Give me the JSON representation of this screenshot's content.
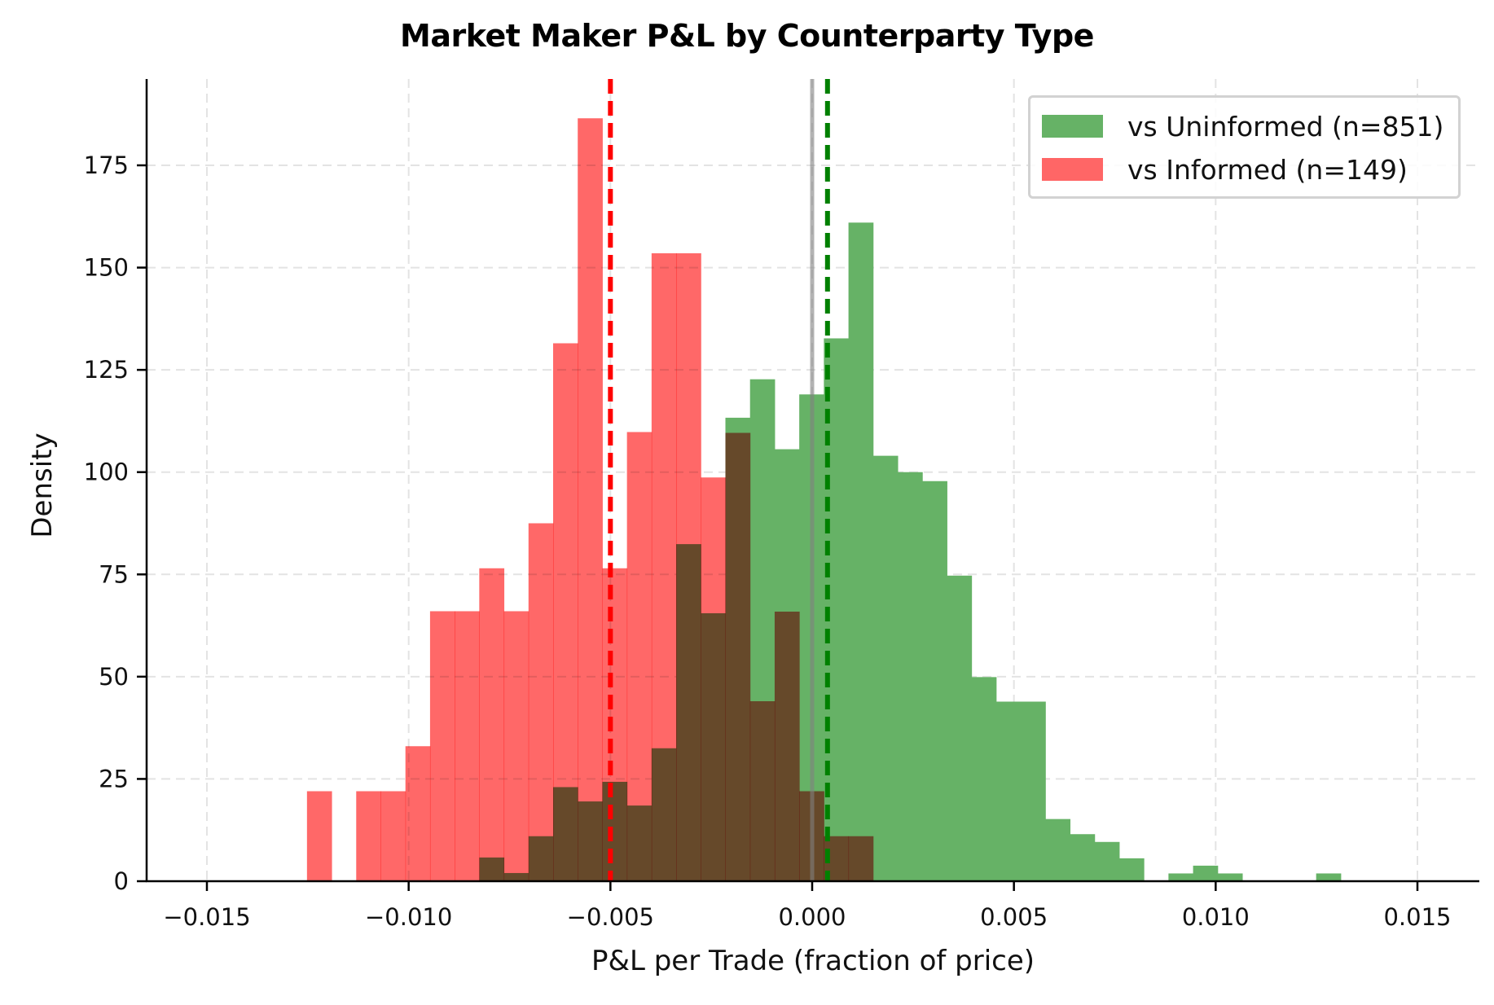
{
  "chart_data": {
    "type": "bar",
    "subtype": "overlaid_histogram",
    "title": "Market Maker P&L by Counterparty Type",
    "xlabel": "P&L per Trade (fraction of price)",
    "ylabel": "Density",
    "xlim": [
      -0.0165,
      0.0165
    ],
    "ylim": [
      0,
      195
    ],
    "x_ticks": [
      -0.015,
      -0.01,
      -0.005,
      0.0,
      0.005,
      0.01,
      0.015
    ],
    "x_tick_labels": [
      "−0.015",
      "−0.010",
      "−0.005",
      "0.000",
      "0.005",
      "0.010",
      "0.015"
    ],
    "y_ticks": [
      0,
      25,
      50,
      75,
      100,
      125,
      150,
      175
    ],
    "y_tick_labels": [
      "0",
      "25",
      "50",
      "75",
      "100",
      "125",
      "150",
      "175"
    ],
    "grid": true,
    "legend_position": "upper right",
    "bin_width": 0.00061,
    "series": [
      {
        "name": "vs Uninformed (n=851)",
        "color": "#66b266",
        "opacity": 1.0,
        "bins": [
          {
            "x0": -0.00825,
            "height": 5.8
          },
          {
            "x0": -0.00764,
            "height": 2.0
          },
          {
            "x0": -0.00703,
            "height": 11.0
          },
          {
            "x0": -0.00642,
            "height": 23.0
          },
          {
            "x0": -0.00581,
            "height": 19.5
          },
          {
            "x0": -0.0052,
            "height": 24.3
          },
          {
            "x0": -0.00459,
            "height": 18.5
          },
          {
            "x0": -0.00398,
            "height": 32.5
          },
          {
            "x0": -0.00337,
            "height": 82.4
          },
          {
            "x0": -0.00276,
            "height": 65.5
          },
          {
            "x0": -0.00215,
            "height": 113.3
          },
          {
            "x0": -0.00154,
            "height": 122.7
          },
          {
            "x0": -0.00093,
            "height": 105.6
          },
          {
            "x0": -0.00032,
            "height": 119.0
          },
          {
            "x0": 0.00029,
            "height": 132.7
          },
          {
            "x0": 0.0009,
            "height": 161.0
          },
          {
            "x0": 0.00151,
            "height": 104.0
          },
          {
            "x0": 0.00212,
            "height": 100.0
          },
          {
            "x0": 0.00273,
            "height": 97.8
          },
          {
            "x0": 0.00334,
            "height": 74.7
          },
          {
            "x0": 0.00395,
            "height": 49.9
          },
          {
            "x0": 0.00456,
            "height": 43.9
          },
          {
            "x0": 0.00517,
            "height": 43.9
          },
          {
            "x0": 0.00578,
            "height": 15.2
          },
          {
            "x0": 0.00639,
            "height": 11.5
          },
          {
            "x0": 0.007,
            "height": 9.6
          },
          {
            "x0": 0.00761,
            "height": 5.6
          },
          {
            "x0": 0.00883,
            "height": 1.9
          },
          {
            "x0": 0.00944,
            "height": 3.8
          },
          {
            "x0": 0.01005,
            "height": 1.9
          },
          {
            "x0": 0.01249,
            "height": 1.9
          }
        ]
      },
      {
        "name": "vs Informed (n=149)",
        "color": "#ff4d4d",
        "opacity": 0.85,
        "bins": [
          {
            "x0": -0.01252,
            "height": 22.0
          },
          {
            "x0": -0.0113,
            "height": 22.0
          },
          {
            "x0": -0.01069,
            "height": 22.0
          },
          {
            "x0": -0.01008,
            "height": 33.0
          },
          {
            "x0": -0.00947,
            "height": 66.0
          },
          {
            "x0": -0.00886,
            "height": 66.0
          },
          {
            "x0": -0.00825,
            "height": 76.5
          },
          {
            "x0": -0.00764,
            "height": 66.0
          },
          {
            "x0": -0.00703,
            "height": 87.5
          },
          {
            "x0": -0.00642,
            "height": 131.5
          },
          {
            "x0": -0.00581,
            "height": 186.5
          },
          {
            "x0": -0.0052,
            "height": 76.5
          },
          {
            "x0": -0.00459,
            "height": 109.8
          },
          {
            "x0": -0.00398,
            "height": 153.5
          },
          {
            "x0": -0.00337,
            "height": 153.5
          },
          {
            "x0": -0.00276,
            "height": 98.7
          },
          {
            "x0": -0.00215,
            "height": 109.6
          },
          {
            "x0": -0.00154,
            "height": 44.0
          },
          {
            "x0": -0.00093,
            "height": 65.9
          },
          {
            "x0": -0.00032,
            "height": 22.0
          },
          {
            "x0": 0.00029,
            "height": 11.0
          },
          {
            "x0": 0.0009,
            "height": 11.0
          }
        ]
      }
    ],
    "reference_lines": [
      {
        "name": "informed-mean",
        "x": -0.005,
        "color": "#ff0000",
        "style": "dashed"
      },
      {
        "name": "uninformed-mean",
        "x": 0.00038,
        "color": "#008000",
        "style": "dashed"
      },
      {
        "name": "zero-line",
        "x": 0.0,
        "color": "#808080",
        "style": "solid"
      }
    ]
  },
  "legend": {
    "items": [
      {
        "label": "vs Uninformed (n=851)",
        "color": "#66b266"
      },
      {
        "label": "vs Informed (n=149)",
        "color": "#ff6666"
      }
    ]
  }
}
